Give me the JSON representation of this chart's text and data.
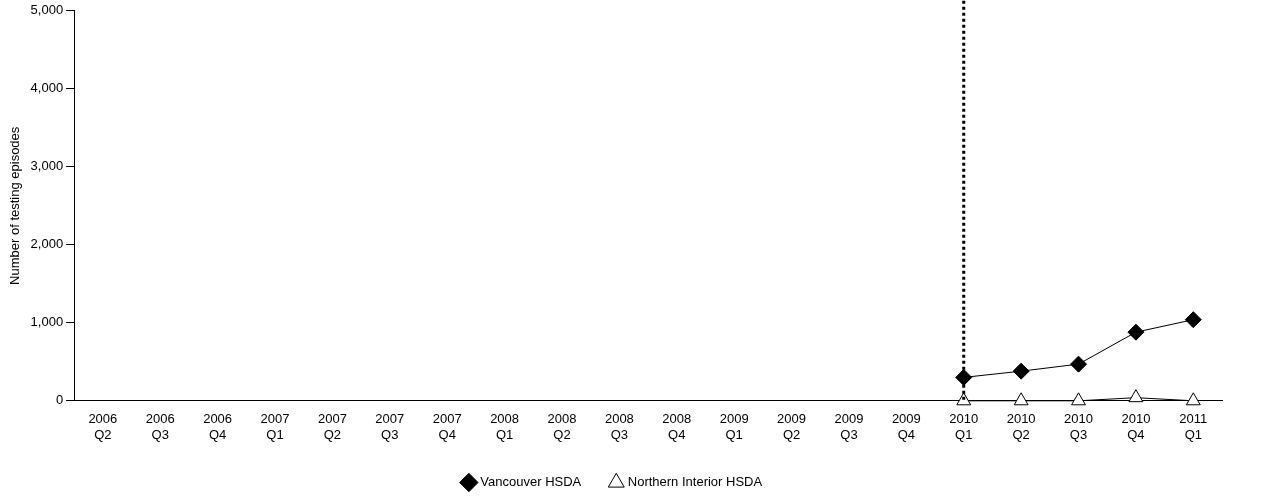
{
  "chart_data": {
    "type": "line",
    "ylabel": "Number of testing episodes",
    "categories": [
      "2006 Q2",
      "2006 Q3",
      "2006 Q4",
      "2007 Q1",
      "2007 Q2",
      "2007 Q3",
      "2007 Q4",
      "2008 Q1",
      "2008 Q2",
      "2008 Q3",
      "2008 Q4",
      "2009 Q1",
      "2009 Q2",
      "2009 Q3",
      "2009 Q4",
      "2010 Q1",
      "2010 Q2",
      "2010 Q3",
      "2010 Q4",
      "2011 Q1"
    ],
    "series": [
      {
        "name": "Vancouver HSDA",
        "color": "#000000",
        "marker": "diamond",
        "values": [
          null,
          null,
          null,
          null,
          null,
          null,
          null,
          null,
          null,
          null,
          null,
          null,
          null,
          null,
          null,
          300,
          380,
          470,
          880,
          1040
        ]
      },
      {
        "name": "Northern Interior HSDA",
        "color": "#000000",
        "marker": "triangle",
        "values": [
          null,
          null,
          null,
          null,
          null,
          null,
          null,
          null,
          null,
          null,
          null,
          null,
          null,
          null,
          null,
          0,
          0,
          0,
          40,
          0
        ]
      }
    ],
    "ylim": [
      0,
      5000
    ],
    "yticks": [
      {
        "value": 0,
        "label": "0"
      },
      {
        "value": 1000,
        "label": "1,000"
      },
      {
        "value": 2000,
        "label": "2,000"
      },
      {
        "value": 3000,
        "label": "3,000"
      },
      {
        "value": 4000,
        "label": "4,000"
      },
      {
        "value": 5000,
        "label": "5,000"
      }
    ],
    "grid": false,
    "legend": "bottom",
    "ref_lines": [
      {
        "axis": "x",
        "value": "2010 Q1",
        "color": "#000000",
        "line_style": "dotted"
      }
    ]
  }
}
